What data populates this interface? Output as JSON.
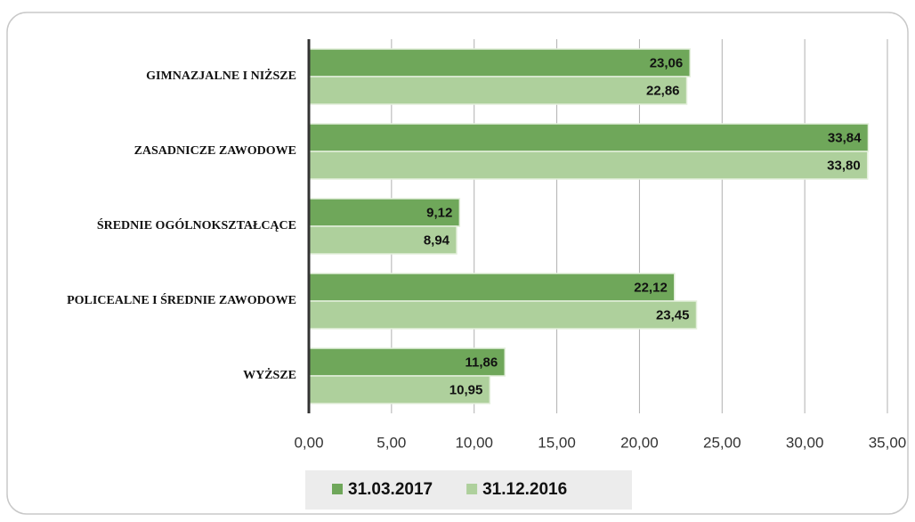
{
  "chart_data": {
    "type": "hbar",
    "categories": [
      "GIMNAZJALNE I NIŻSZE",
      "ZASADNICZE ZAWODOWE",
      "ŚREDNIE OGÓLNOKSZTAŁCĄCE",
      "POLICEALNE I ŚREDNIE ZAWODOWE",
      "WYŻSZE"
    ],
    "series": [
      {
        "name": "31.03.2017",
        "color": "#6fa75a",
        "values": [
          23.06,
          33.84,
          9.12,
          22.12,
          11.86
        ],
        "value_labels": [
          "23,06",
          "33,84",
          "9,12",
          "22,12",
          "11,86"
        ]
      },
      {
        "name": "31.12.2016",
        "color": "#aed09c",
        "values": [
          22.86,
          33.8,
          8.94,
          23.45,
          10.95
        ],
        "value_labels": [
          "22,86",
          "33,80",
          "8,94",
          "23,45",
          "10,95"
        ]
      }
    ],
    "xlim": [
      0,
      35
    ],
    "xticks": [
      {
        "value": 0,
        "label": "0,00"
      },
      {
        "value": 5,
        "label": "5,00"
      },
      {
        "value": 10,
        "label": "10,00"
      },
      {
        "value": 15,
        "label": "15,00"
      },
      {
        "value": 20,
        "label": "20,00"
      },
      {
        "value": 25,
        "label": "25,00"
      },
      {
        "value": 30,
        "label": "30,00"
      },
      {
        "value": 35,
        "label": "35,00"
      }
    ],
    "grid": true,
    "legend": "bottom"
  }
}
